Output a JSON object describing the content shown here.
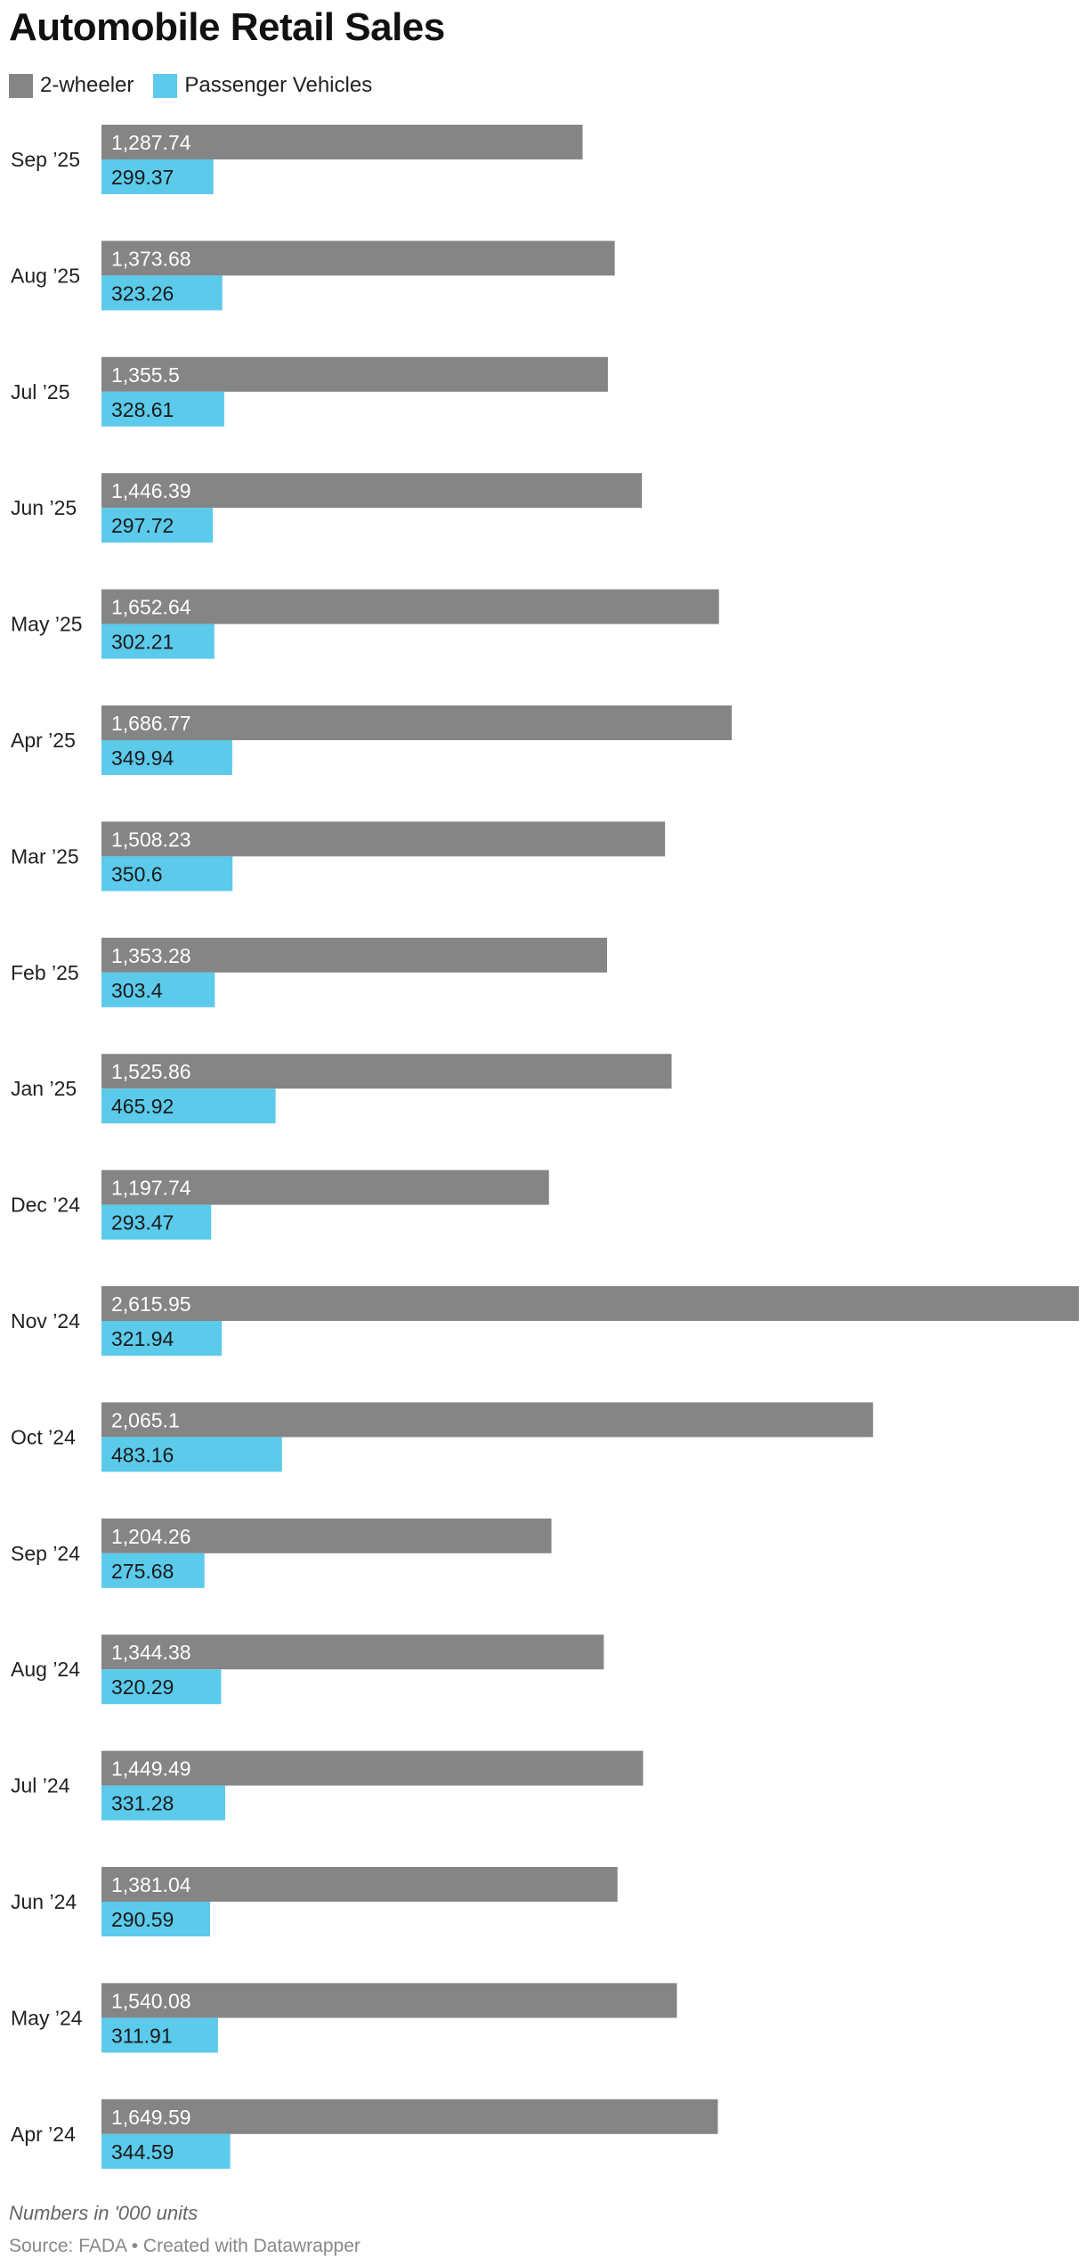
{
  "chart_data": {
    "type": "bar",
    "orientation": "horizontal",
    "title": "Automobile Retail Sales",
    "categories": [
      "Sep ’25",
      "Aug ’25",
      "Jul ’25",
      "Jun ’25",
      "May ’25",
      "Apr ’25",
      "Mar ’25",
      "Feb ’25",
      "Jan ’25",
      "Dec ’24",
      "Nov ’24",
      "Oct ’24",
      "Sep ’24",
      "Aug ’24",
      "Jul ’24",
      "Jun ’24",
      "May ’24",
      "Apr ’24"
    ],
    "series": [
      {
        "name": "2-wheeler",
        "color": "#858585",
        "label_color": "#ffffff",
        "values": [
          1287.74,
          1373.68,
          1355.5,
          1446.39,
          1652.64,
          1686.77,
          1508.23,
          1353.28,
          1525.86,
          1197.74,
          2615.95,
          2065.1,
          1204.26,
          1344.38,
          1449.49,
          1381.04,
          1540.08,
          1649.59
        ],
        "labels": [
          "1,287.74",
          "1,373.68",
          "1,355.5",
          "1,446.39",
          "1,652.64",
          "1,686.77",
          "1,508.23",
          "1,353.28",
          "1,525.86",
          "1,197.74",
          "2,615.95",
          "2,065.1",
          "1,204.26",
          "1,344.38",
          "1,449.49",
          "1,381.04",
          "1,540.08",
          "1,649.59"
        ]
      },
      {
        "name": "Passenger Vehicles",
        "color": "#5bcaeb",
        "label_color": "#1a1a1a",
        "values": [
          299.37,
          323.26,
          328.61,
          297.72,
          302.21,
          349.94,
          350.6,
          303.4,
          465.92,
          293.47,
          321.94,
          483.16,
          275.68,
          320.29,
          331.28,
          290.59,
          311.91,
          344.59
        ],
        "labels": [
          "299.37",
          "323.26",
          "328.61",
          "297.72",
          "302.21",
          "349.94",
          "350.6",
          "303.4",
          "465.92",
          "293.47",
          "321.94",
          "483.16",
          "275.68",
          "320.29",
          "331.28",
          "290.59",
          "311.91",
          "344.59"
        ]
      }
    ],
    "xlim": [
      0,
      2615.95
    ],
    "xlabel": "",
    "ylabel": "",
    "grid": false,
    "legend_position": "top-left",
    "note": "Numbers in '000 units",
    "source": "Source: FADA • Created with Datawrapper"
  }
}
